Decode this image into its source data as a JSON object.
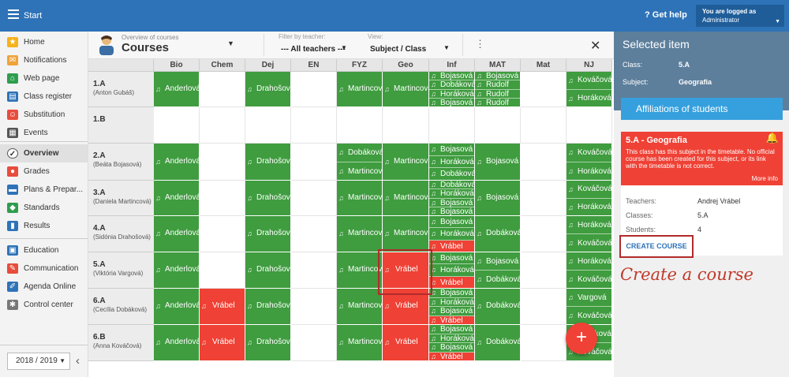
{
  "topbar": {
    "start": "Start",
    "help": "Get help",
    "logged_as": "You are logged as",
    "user": "Administrator"
  },
  "sidebar": {
    "items": [
      {
        "label": "Home",
        "icon": "star-icon",
        "color": "#f5b21a"
      },
      {
        "label": "Notifications",
        "icon": "envelope-icon",
        "color": "#f0a33a"
      },
      {
        "label": "Web page",
        "icon": "house-icon",
        "color": "#2e9d4d"
      },
      {
        "label": "Class register",
        "icon": "book-icon",
        "color": "#2e73b8"
      },
      {
        "label": "Substitution",
        "icon": "person-swap-icon",
        "color": "#e74c3c"
      },
      {
        "label": "Events",
        "icon": "calendar-icon",
        "color": "#555555"
      },
      {
        "label": "Overview",
        "icon": "check-circle-icon",
        "color": "#333333"
      },
      {
        "label": "Grades",
        "icon": "grade-icon",
        "color": "#e74c3c"
      },
      {
        "label": "Plans & Prepar...",
        "icon": "plan-icon",
        "color": "#2e73b8"
      },
      {
        "label": "Standards",
        "icon": "shield-icon",
        "color": "#2e9d4d"
      },
      {
        "label": "Results",
        "icon": "bar-chart-icon",
        "color": "#2e73b8"
      },
      {
        "label": "Education",
        "icon": "education-icon",
        "color": "#2e73b8"
      },
      {
        "label": "Communication",
        "icon": "chat-icon",
        "color": "#e74c3c"
      },
      {
        "label": "Agenda Online",
        "icon": "pen-icon",
        "color": "#2e73b8"
      },
      {
        "label": "Control center",
        "icon": "gear-icon",
        "color": "#777777"
      }
    ],
    "year": "2018 / 2019"
  },
  "header": {
    "overview_label": "Overview of courses",
    "title": "Courses",
    "filter_label": "Filter by teacher:",
    "filter_value": "--- All teachers ---",
    "view_label": "View:",
    "view_value": "Subject / Class"
  },
  "columns": [
    "Bio",
    "Chem",
    "Dej",
    "EN",
    "FYZ",
    "Geo",
    "Inf",
    "MAT",
    "Mat",
    "NJ"
  ],
  "rows": [
    {
      "name": "1.A",
      "teacher": "(Anton Gubáš)",
      "cells": [
        {
          "c": "g",
          "items": [
            "Anderlová"
          ]
        },
        {
          "c": "w",
          "items": []
        },
        {
          "c": "g",
          "items": [
            "Drahošová"
          ]
        },
        {
          "c": "w",
          "items": []
        },
        {
          "c": "g",
          "items": [
            "Martincová"
          ]
        },
        {
          "c": "g",
          "items": [
            "Martincová"
          ]
        },
        {
          "c": "g",
          "items": [
            "Bojasová",
            "Dobáková",
            "Horáková",
            "Bojasová"
          ]
        },
        {
          "c": "g",
          "items": [
            "Bojasová",
            "Rudolf",
            "Rudolf",
            "Rudolf"
          ]
        },
        {
          "c": "w",
          "items": []
        },
        {
          "c": "g",
          "items": [
            "Kováčová",
            "Horáková"
          ]
        }
      ]
    },
    {
      "name": "1.B",
      "teacher": "",
      "cells": [
        {
          "c": "w",
          "items": []
        },
        {
          "c": "w",
          "items": []
        },
        {
          "c": "w",
          "items": []
        },
        {
          "c": "w",
          "items": []
        },
        {
          "c": "w",
          "items": []
        },
        {
          "c": "w",
          "items": []
        },
        {
          "c": "w",
          "items": []
        },
        {
          "c": "w",
          "items": []
        },
        {
          "c": "w",
          "items": []
        },
        {
          "c": "w",
          "items": []
        }
      ]
    },
    {
      "name": "2.A",
      "teacher": "(Beáta Bojasová)",
      "cells": [
        {
          "c": "g",
          "items": [
            "Anderlová"
          ]
        },
        {
          "c": "w",
          "items": []
        },
        {
          "c": "g",
          "items": [
            "Drahošová"
          ]
        },
        {
          "c": "w",
          "items": []
        },
        {
          "c": "g",
          "items": [
            "Dobáková",
            "Martincová"
          ]
        },
        {
          "c": "g",
          "items": [
            "Martincová"
          ]
        },
        {
          "c": "g",
          "items": [
            "Bojasová",
            "Horáková",
            "Dobáková"
          ]
        },
        {
          "c": "g",
          "items": [
            "Bojasová"
          ]
        },
        {
          "c": "w",
          "items": []
        },
        {
          "c": "g",
          "items": [
            "Kováčová",
            "Horáková"
          ]
        }
      ]
    },
    {
      "name": "3.A",
      "teacher": "(Daniela Martincová)",
      "cells": [
        {
          "c": "g",
          "items": [
            "Anderlová"
          ]
        },
        {
          "c": "w",
          "items": []
        },
        {
          "c": "g",
          "items": [
            "Drahošová"
          ]
        },
        {
          "c": "w",
          "items": []
        },
        {
          "c": "g",
          "items": [
            "Martincová"
          ]
        },
        {
          "c": "g",
          "items": [
            "Martincová"
          ]
        },
        {
          "c": "g",
          "items": [
            "Dobáková",
            "Horáková",
            "Bojasová",
            "Bojasová"
          ]
        },
        {
          "c": "g",
          "items": [
            "Bojasová"
          ]
        },
        {
          "c": "w",
          "items": []
        },
        {
          "c": "g",
          "items": [
            "Kováčová",
            "Horáková"
          ]
        }
      ]
    },
    {
      "name": "4.A",
      "teacher": "(Sidónia Drahošová)",
      "cells": [
        {
          "c": "g",
          "items": [
            "Anderlová"
          ]
        },
        {
          "c": "w",
          "items": []
        },
        {
          "c": "g",
          "items": [
            "Drahošová"
          ]
        },
        {
          "c": "w",
          "items": []
        },
        {
          "c": "g",
          "items": [
            "Martincová"
          ]
        },
        {
          "c": "g",
          "items": [
            "Martincová"
          ]
        },
        {
          "c": "g",
          "items": [
            "Bojasová",
            "Horáková",
            "Vrábel"
          ],
          "red": [
            2
          ]
        },
        {
          "c": "g",
          "items": [
            "Dobáková"
          ]
        },
        {
          "c": "w",
          "items": []
        },
        {
          "c": "g",
          "items": [
            "Horáková",
            "Kováčová"
          ]
        }
      ]
    },
    {
      "name": "5.A",
      "teacher": "(Viktória Vargová)",
      "cells": [
        {
          "c": "g",
          "items": [
            "Anderlová"
          ]
        },
        {
          "c": "w",
          "items": []
        },
        {
          "c": "g",
          "items": [
            "Drahošová"
          ]
        },
        {
          "c": "w",
          "items": []
        },
        {
          "c": "g",
          "items": [
            "Martincová"
          ]
        },
        {
          "c": "r",
          "items": [
            "Vrábel"
          ]
        },
        {
          "c": "g",
          "items": [
            "Bojasová",
            "Horáková",
            "Vrábel"
          ],
          "red": [
            2
          ]
        },
        {
          "c": "g",
          "items": [
            "Bojasová",
            "Dobáková"
          ]
        },
        {
          "c": "w",
          "items": []
        },
        {
          "c": "g",
          "items": [
            "Horáková",
            "Kováčová"
          ]
        }
      ]
    },
    {
      "name": "6.A",
      "teacher": "(Cecília Dobáková)",
      "cells": [
        {
          "c": "g",
          "items": [
            "Anderlová"
          ]
        },
        {
          "c": "r",
          "items": [
            "Vrábel"
          ]
        },
        {
          "c": "g",
          "items": [
            "Drahošová"
          ]
        },
        {
          "c": "w",
          "items": []
        },
        {
          "c": "g",
          "items": [
            "Martincová"
          ]
        },
        {
          "c": "r",
          "items": [
            "Vrábel"
          ]
        },
        {
          "c": "g",
          "items": [
            "Bojasová",
            "Horáková",
            "Bojasová",
            "Vrábel"
          ],
          "red": [
            3
          ]
        },
        {
          "c": "g",
          "items": [
            "Dobáková"
          ]
        },
        {
          "c": "w",
          "items": []
        },
        {
          "c": "g",
          "items": [
            "Vargová",
            "Kováčová"
          ]
        }
      ]
    },
    {
      "name": "6.B",
      "teacher": "(Anna Kováčová)",
      "cells": [
        {
          "c": "g",
          "items": [
            "Anderlová"
          ]
        },
        {
          "c": "r",
          "items": [
            "Vrábel"
          ]
        },
        {
          "c": "g",
          "items": [
            "Drahošová"
          ]
        },
        {
          "c": "w",
          "items": []
        },
        {
          "c": "g",
          "items": [
            "Martincová"
          ]
        },
        {
          "c": "r",
          "items": [
            "Vrábel"
          ]
        },
        {
          "c": "g",
          "items": [
            "Bojasová",
            "Horáková",
            "Bojasová",
            "Vrábel"
          ],
          "red": [
            3
          ]
        },
        {
          "c": "g",
          "items": [
            "Dobáková"
          ]
        },
        {
          "c": "w",
          "items": []
        },
        {
          "c": "g",
          "items": [
            "Horáková",
            "Kováčová"
          ]
        }
      ]
    }
  ],
  "right": {
    "title": "Selected item",
    "class_label": "Class:",
    "class_value": "5.A",
    "subject_label": "Subject:",
    "subject_value": "Geografia",
    "affiliations": "Affiliations of students",
    "alert_title": "5.A - Geografia",
    "alert_text": "This class has this subject in the timetable. No official course has been created for this subject, or its link with the timetable is not correct.",
    "more": "More info",
    "teachers_label": "Teachers:",
    "teachers_value": "Andrej Vrábel",
    "classes_label": "Classes:",
    "classes_value": "5.A",
    "students_label": "Students:",
    "students_value": "4",
    "create": "CREATE COURSE"
  },
  "annotation": "Create a course",
  "colors": {
    "green": "#3f9c3f",
    "red": "#ef4135",
    "blue": "#2e73b8",
    "panel": "#5d7f9c"
  }
}
